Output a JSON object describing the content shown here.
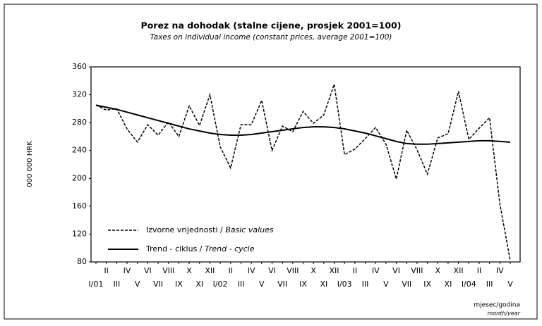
{
  "chart_data": {
    "type": "line",
    "title": "Porez na dohodak (stalne cijene, prosjek 2001=100)",
    "subtitle": "Taxes on individual income (constant prices, average 2001=100)",
    "y_label": "000 000 HRK",
    "x_label": "mjesec/godina",
    "x_label_en": "month/year",
    "categories": [
      "I/01",
      "II",
      "III",
      "IV",
      "V",
      "VI",
      "VII",
      "VIII",
      "IX",
      "X",
      "XI",
      "XII",
      "I/02",
      "II",
      "III",
      "IV",
      "V",
      "VI",
      "VII",
      "VIII",
      "IX",
      "X",
      "XI",
      "XII",
      "I/03",
      "II",
      "III",
      "IV",
      "V",
      "VI",
      "VII",
      "VIII",
      "IX",
      "X",
      "XI",
      "XII",
      "I/04",
      "II",
      "III",
      "IV",
      "V"
    ],
    "series": [
      {
        "name": "Izvorne vrijednosti / ",
        "name_en": "Basic values",
        "color": "#000000",
        "dash": true,
        "values": [
          305,
          298,
          300,
          271,
          252,
          277,
          262,
          281,
          260,
          304,
          276,
          320,
          245,
          215,
          277,
          277,
          312,
          240,
          275,
          267,
          296,
          279,
          291,
          335,
          234,
          242,
          257,
          273,
          249,
          199,
          269,
          241,
          206,
          258,
          264,
          325,
          256,
          272,
          287,
          163,
          82
        ]
      },
      {
        "name": "Trend - ciklus / ",
        "name_en": "Trend - cycle",
        "color": "#000000",
        "dash": false,
        "values": [
          305,
          302,
          299,
          295,
          291,
          287,
          283,
          279,
          275,
          271,
          268,
          265,
          263,
          262,
          262,
          263,
          265,
          267,
          269,
          271,
          273,
          274,
          274,
          273,
          271,
          268,
          265,
          261,
          257,
          253,
          250,
          249,
          249,
          250,
          251,
          252,
          253,
          254,
          254,
          253,
          252
        ]
      }
    ],
    "ylim": [
      80,
      360
    ],
    "yticks": [
      80,
      120,
      160,
      200,
      240,
      280,
      320,
      360
    ],
    "grid": false
  }
}
